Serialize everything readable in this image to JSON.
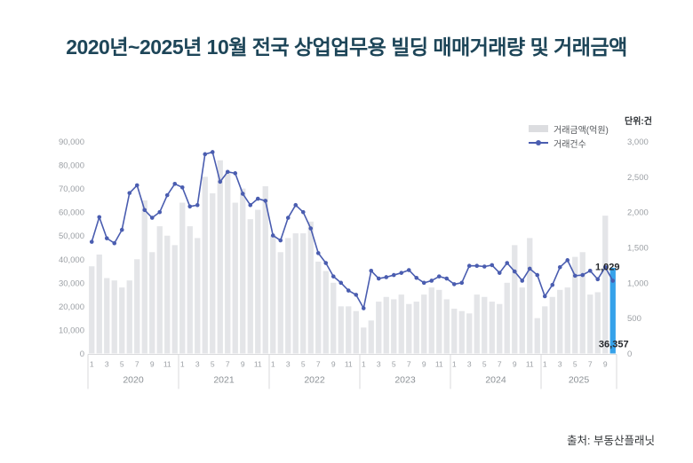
{
  "title": "2020년~2025년 10월 전국 상업업무용 빌딩 매매거래량 및 거래금액",
  "unit_label": "단위:건",
  "legend": {
    "bar_label": "거래금액(억원)",
    "line_label": "거래건수"
  },
  "source": "출처: 부동산플래닛",
  "colors": {
    "title_text": "#1d4558",
    "bar": "#e4e5e8",
    "bar_highlight": "#36a2ea",
    "line": "#4a5db0",
    "axis_text": "#9b9fa4",
    "year_text": "#8b9095",
    "annotation_text": "#25282c",
    "axis_line": "#d8d9db"
  },
  "chart_data": {
    "type": "bar",
    "subtype": "combo-bar-line",
    "title": "2020년~2025년 10월 전국 상업업무용 빌딩 매매거래량 및 거래금액",
    "years": [
      {
        "label": "2020",
        "months": 12
      },
      {
        "label": "2021",
        "months": 12
      },
      {
        "label": "2022",
        "months": 12
      },
      {
        "label": "2023",
        "months": 12
      },
      {
        "label": "2024",
        "months": 12
      },
      {
        "label": "2025",
        "months": 10
      }
    ],
    "left_axis": {
      "min": 0,
      "max": 90000,
      "step": 10000
    },
    "right_axis": {
      "min": 0,
      "max": 3000,
      "step": 500
    },
    "grid": false,
    "legend_position": "top-right",
    "series": [
      {
        "name": "거래금액(억원)",
        "type": "bar",
        "axis": "left",
        "values": [
          37000,
          42000,
          32000,
          31000,
          28000,
          31000,
          40000,
          65000,
          43000,
          54000,
          50000,
          46000,
          64000,
          54000,
          49000,
          75000,
          68000,
          82000,
          77000,
          64000,
          70000,
          57000,
          61000,
          71000,
          50000,
          43000,
          49000,
          51000,
          51000,
          56000,
          39000,
          35000,
          30000,
          20000,
          20000,
          18000,
          11000,
          14000,
          22000,
          24000,
          23000,
          25000,
          21000,
          22000,
          25000,
          28000,
          27000,
          23000,
          19000,
          18000,
          17000,
          25000,
          24000,
          22000,
          21000,
          30000,
          46000,
          28000,
          49000,
          15000,
          20000,
          24000,
          27000,
          28000,
          41000,
          43000,
          25000,
          26000,
          58500,
          36357
        ]
      },
      {
        "name": "거래건수",
        "type": "line",
        "axis": "right",
        "values": [
          1580,
          1930,
          1630,
          1560,
          1750,
          2270,
          2380,
          2030,
          1920,
          2000,
          2240,
          2400,
          2350,
          2080,
          2100,
          2820,
          2850,
          2430,
          2570,
          2550,
          2260,
          2100,
          2190,
          2160,
          1670,
          1600,
          1920,
          2100,
          2000,
          1770,
          1420,
          1280,
          1090,
          1000,
          890,
          830,
          640,
          1170,
          1060,
          1080,
          1110,
          1140,
          1180,
          1070,
          1000,
          1030,
          1090,
          1060,
          980,
          1000,
          1240,
          1240,
          1230,
          1250,
          1140,
          1280,
          1160,
          1030,
          1200,
          1110,
          810,
          970,
          1220,
          1320,
          1100,
          1110,
          1170,
          1050,
          1220,
          1029
        ]
      }
    ],
    "highlight_index": 69,
    "annotations": [
      {
        "index": 69,
        "series": "line",
        "text": "1,029"
      },
      {
        "index": 69,
        "series": "bar",
        "text": "36,357"
      }
    ]
  }
}
